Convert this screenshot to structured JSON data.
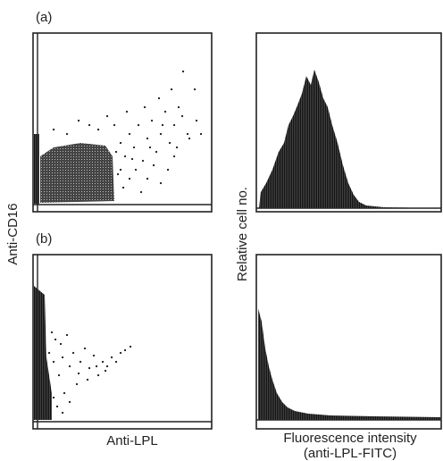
{
  "figure": {
    "panels": [
      {
        "label": "(a)"
      },
      {
        "label": "(b)"
      }
    ],
    "y_label_left": "Anti-CD16",
    "x_label_left": "Anti-LPL",
    "y_label_right": "Relative cell no.",
    "x_label_right": [
      "Fluorescence intensity",
      "(anti-LPL-FITC)"
    ]
  }
}
